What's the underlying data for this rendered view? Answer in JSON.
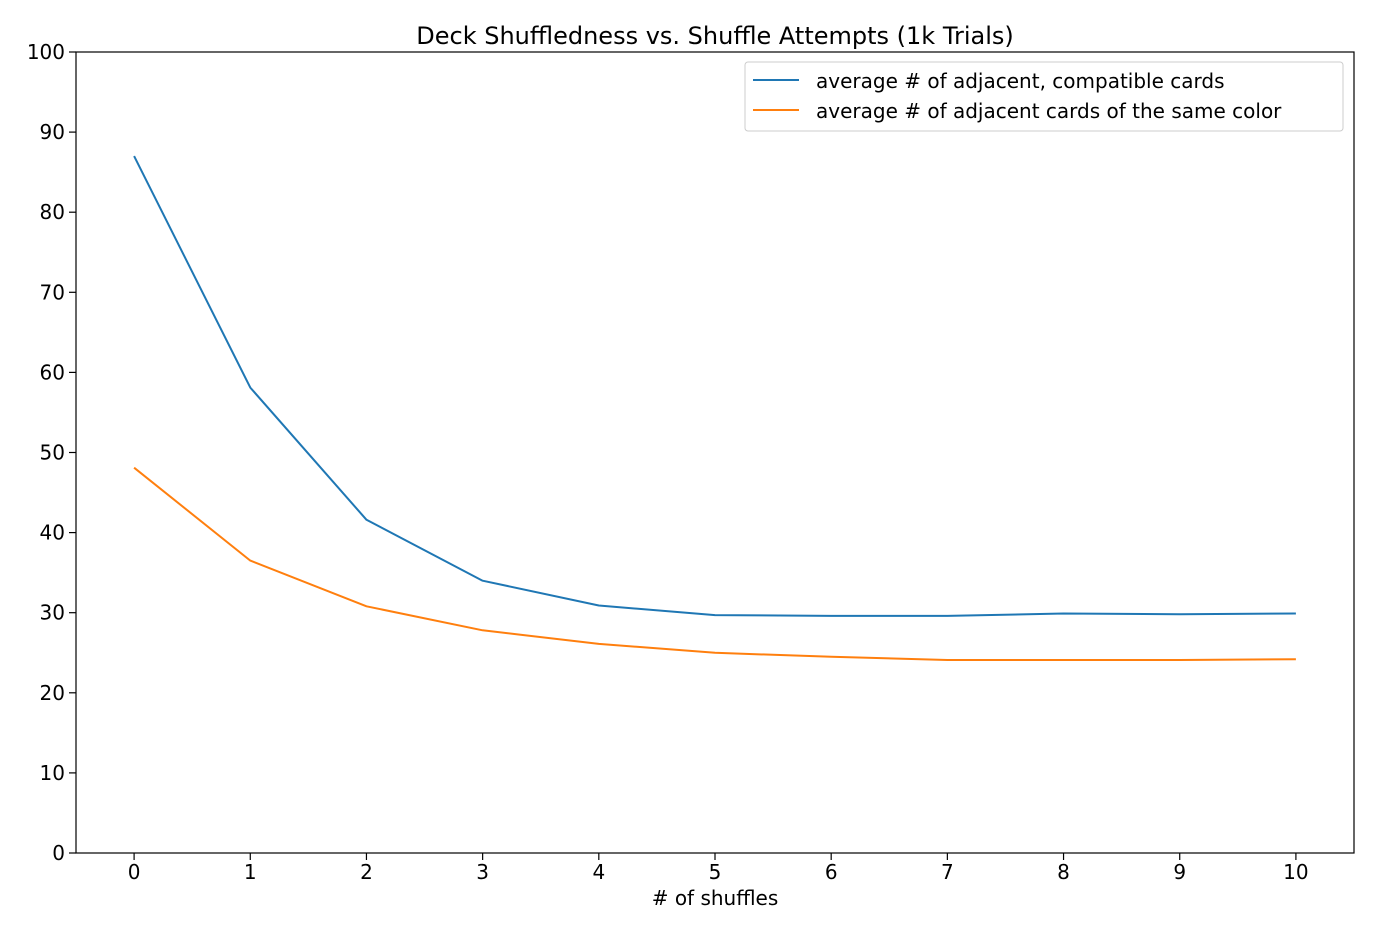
{
  "chart_data": {
    "type": "line",
    "title": "Deck Shuffledness vs. Shuffle Attempts (1k Trials)",
    "xlabel": "# of shuffles",
    "ylabel": "",
    "x": [
      0,
      1,
      2,
      3,
      4,
      5,
      6,
      7,
      8,
      9,
      10
    ],
    "xlim": [
      -0.5,
      10.5
    ],
    "ylim": [
      0,
      100
    ],
    "xticks": [
      "0",
      "1",
      "2",
      "3",
      "4",
      "5",
      "6",
      "7",
      "8",
      "9",
      "10"
    ],
    "yticks": [
      "0",
      "10",
      "20",
      "30",
      "40",
      "50",
      "60",
      "70",
      "80",
      "90",
      "100"
    ],
    "grid": false,
    "legend_position": "top-right",
    "series": [
      {
        "name": "average # of adjacent, compatible cards",
        "color": "#1f77b4",
        "values": [
          87.0,
          58.1,
          41.6,
          34.0,
          30.9,
          29.7,
          29.6,
          29.6,
          29.9,
          29.8,
          29.9
        ]
      },
      {
        "name": "average # of adjacent cards of the same color",
        "color": "#ff7f0e",
        "values": [
          48.1,
          36.5,
          30.8,
          27.8,
          26.1,
          25.0,
          24.5,
          24.1,
          24.1,
          24.1,
          24.2
        ]
      }
    ]
  }
}
